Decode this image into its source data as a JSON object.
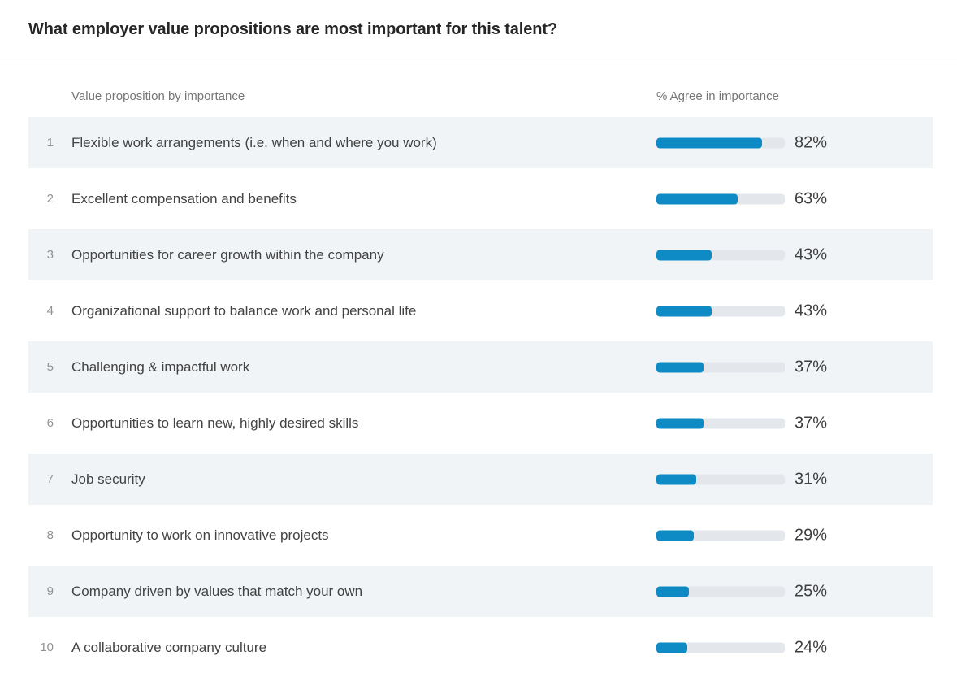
{
  "page": {
    "title": "What employer value propositions are most important for this talent?"
  },
  "table": {
    "columns": {
      "left": "Value proposition by importance",
      "right": "% Agree in importance"
    }
  },
  "chart_data": {
    "type": "bar",
    "orientation": "horizontal",
    "title": "What employer value propositions are most important for this talent?",
    "xlabel": "% Agree in importance",
    "ylabel": "Value proposition by importance",
    "xlim": [
      0,
      100
    ],
    "grid": false,
    "legend": false,
    "categories": [
      "Flexible work arrangements (i.e. when and where you work)",
      "Excellent compensation and benefits",
      "Opportunities for career growth within the company",
      "Organizational support to balance work and personal life",
      "Challenging & impactful work",
      "Opportunities to learn new, highly desired skills",
      "Job security",
      "Opportunity to work on innovative projects",
      "Company driven by values that match your own",
      "A collaborative company culture"
    ],
    "values": [
      82,
      63,
      43,
      43,
      37,
      37,
      31,
      29,
      25,
      24
    ],
    "rows": [
      {
        "rank": "1",
        "label": "Flexible work arrangements (i.e. when and where you work)",
        "value": 82,
        "value_label": "82%"
      },
      {
        "rank": "2",
        "label": "Excellent compensation and benefits",
        "value": 63,
        "value_label": "63%"
      },
      {
        "rank": "3",
        "label": "Opportunities for career growth within the company",
        "value": 43,
        "value_label": "43%"
      },
      {
        "rank": "4",
        "label": "Organizational support to balance work and personal life",
        "value": 43,
        "value_label": "43%"
      },
      {
        "rank": "5",
        "label": "Challenging & impactful work",
        "value": 37,
        "value_label": "37%"
      },
      {
        "rank": "6",
        "label": "Opportunities to learn new, highly desired skills",
        "value": 37,
        "value_label": "37%"
      },
      {
        "rank": "7",
        "label": "Job security",
        "value": 31,
        "value_label": "31%"
      },
      {
        "rank": "8",
        "label": "Opportunity to work on innovative projects",
        "value": 29,
        "value_label": "29%"
      },
      {
        "rank": "9",
        "label": "Company driven by values that match your own",
        "value": 25,
        "value_label": "25%"
      },
      {
        "rank": "10",
        "label": "A collaborative company culture",
        "value": 24,
        "value_label": "24%"
      }
    ],
    "colors": {
      "bar_fill": "#0e8bc5",
      "bar_track": "#e3e7ec",
      "row_stripe": "#f0f4f7",
      "title_text": "#262626",
      "header_text": "#767676"
    }
  }
}
